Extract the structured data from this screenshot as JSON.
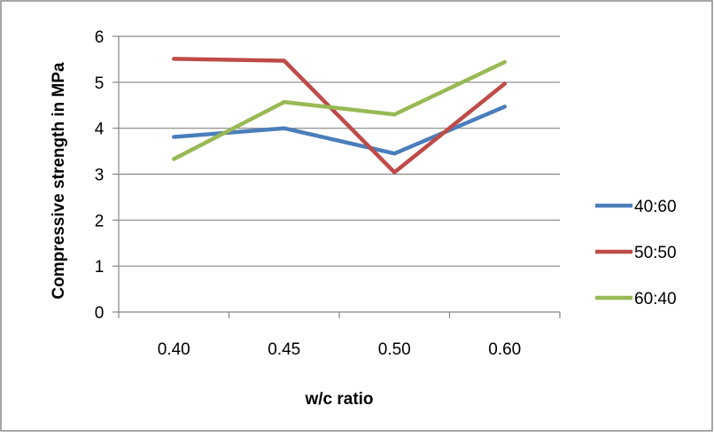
{
  "chart_data": {
    "type": "line",
    "title": "",
    "xlabel": "w/c ratio",
    "ylabel": "Compressive strength in MPa",
    "categories": [
      "0.40",
      "0.45",
      "0.50",
      "0.60"
    ],
    "ylim": [
      0,
      6
    ],
    "yticks": [
      "0",
      "1",
      "2",
      "3",
      "4",
      "5",
      "6"
    ],
    "grid": true,
    "legend_position": "right",
    "series": [
      {
        "name": "40:60",
        "color": "#4a7ebb",
        "values": [
          3.81,
          4.0,
          3.45,
          4.47
        ]
      },
      {
        "name": "50:50",
        "color": "#be4b48",
        "values": [
          5.51,
          5.47,
          3.04,
          4.97
        ]
      },
      {
        "name": "60:40",
        "color": "#98b954",
        "values": [
          3.33,
          4.57,
          4.3,
          5.44
        ]
      }
    ]
  }
}
